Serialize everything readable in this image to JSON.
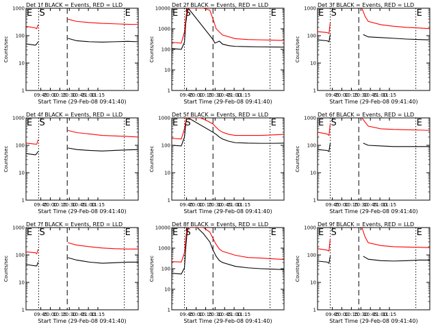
{
  "chart_data": [
    {
      "type": "line",
      "title": "Det 1f BLACK = Events, RED = LLD",
      "xlabel": "Start Time (29-Feb-08 09:41:40)",
      "ylabel": "Counts/sec",
      "yscale": "log",
      "ylim": [
        1,
        1000
      ],
      "yticks": [
        "1",
        "10",
        "100",
        "1000"
      ],
      "xticks": [
        "09:45",
        "10:00",
        "10:15",
        "10:30",
        "10:45",
        "11:00",
        "11:15"
      ],
      "xlim_minutes": [
        -20,
        157
      ],
      "markers": [
        {
          "label": "E",
          "t": -20
        },
        {
          "label": "S",
          "t": 0
        },
        {
          "label": "",
          "t": 45
        },
        {
          "label": "E",
          "t": 135
        }
      ],
      "series": [
        {
          "color": "#000000",
          "t": [
            -20,
            -5,
            -3,
            -1,
            0,
            45,
            46,
            60,
            80,
            100,
            120,
            140,
            157
          ],
          "y": [
            50,
            45,
            50,
            60,
            0,
            0,
            80,
            65,
            60,
            58,
            60,
            62,
            60
          ]
        },
        {
          "color": "#ff0000",
          "t": [
            -20,
            -5,
            -3,
            -1,
            0,
            45,
            46,
            60,
            80,
            100,
            120,
            140,
            157
          ],
          "y": [
            220,
            190,
            180,
            250,
            0,
            0,
            400,
            330,
            300,
            280,
            270,
            260,
            255
          ]
        }
      ]
    },
    {
      "type": "line",
      "title": "Det 2f BLACK = Events, RED = LLD",
      "xlabel": "Start Time (29-Feb-08 09:41:40)",
      "ylabel": "Counts/sec",
      "yscale": "log",
      "ylim": [
        1,
        10000
      ],
      "yticks": [
        "1",
        "10",
        "100",
        "1000",
        "10000"
      ],
      "xticks": [
        "09:45",
        "10:00",
        "10:15",
        "10:30",
        "10:45",
        "11:00",
        "11:15"
      ],
      "xlim_minutes": [
        -20,
        157
      ],
      "markers": [
        {
          "label": "E",
          "t": -20
        },
        {
          "label": "S",
          "t": 0
        },
        {
          "label": "",
          "t": 45
        },
        {
          "label": "E",
          "t": 135
        }
      ],
      "series": [
        {
          "color": "#000000",
          "t": [
            -20,
            -5,
            0,
            2,
            4,
            6,
            45,
            48,
            55,
            60,
            70,
            80,
            100,
            120,
            140,
            157
          ],
          "y": [
            110,
            100,
            220,
            1800,
            5000,
            10000,
            300,
            200,
            250,
            180,
            150,
            140,
            135,
            132,
            130,
            128
          ]
        },
        {
          "color": "#ff0000",
          "t": [
            -20,
            -5,
            0,
            2,
            4,
            6,
            10,
            20,
            30,
            40,
            45,
            50,
            55,
            60,
            80,
            100,
            120,
            140,
            157
          ],
          "y": [
            220,
            200,
            700,
            3000,
            8000,
            10000,
            10000,
            10000,
            10000,
            8000,
            3000,
            1000,
            700,
            500,
            330,
            300,
            290,
            280,
            270
          ]
        }
      ]
    },
    {
      "type": "line",
      "title": "Det 3f BLACK = Events, RED = LLD",
      "xlabel": "Start Time (29-Feb-08 09:41:40)",
      "ylabel": "Counts/sec",
      "yscale": "log",
      "ylim": [
        1,
        1000
      ],
      "yticks": [
        "1",
        "10",
        "100",
        "1000"
      ],
      "xticks": [
        "09:45",
        "10:00",
        "10:15",
        "10:30",
        "10:45",
        "11:00",
        "11:15"
      ],
      "xlim_minutes": [
        -20,
        157
      ],
      "markers": [
        {
          "label": "E",
          "t": -20
        },
        {
          "label": "S",
          "t": 0
        },
        {
          "label": "",
          "t": 45
        },
        {
          "label": "E",
          "t": 135
        }
      ],
      "series": [
        {
          "color": "#000000",
          "t": [
            -20,
            -5,
            -2,
            0,
            45,
            46,
            52,
            60,
            80,
            100,
            120,
            140,
            157
          ],
          "y": [
            70,
            65,
            60,
            110,
            0,
            0,
            110,
            90,
            85,
            80,
            75,
            72,
            70
          ]
        },
        {
          "color": "#ff0000",
          "t": [
            -20,
            -5,
            -2,
            0,
            45,
            46,
            50,
            55,
            60,
            80,
            100,
            120,
            140,
            157
          ],
          "y": [
            140,
            130,
            120,
            300,
            0,
            0,
            1000,
            500,
            330,
            250,
            220,
            200,
            190,
            180
          ]
        }
      ]
    },
    {
      "type": "line",
      "title": "Det 4f BLACK = Events, RED = LLD",
      "xlabel": "Start Time (29-Feb-08 09:41:40)",
      "ylabel": "Counts/sec",
      "yscale": "log",
      "ylim": [
        1,
        1000
      ],
      "yticks": [
        "1",
        "10",
        "100",
        "1000"
      ],
      "xticks": [
        "09:45",
        "10:00",
        "10:15",
        "10:30",
        "10:45",
        "11:00",
        "11:15"
      ],
      "xlim_minutes": [
        -20,
        157
      ],
      "markers": [
        {
          "label": "E",
          "t": -20
        },
        {
          "label": "S",
          "t": 0
        },
        {
          "label": "",
          "t": 45
        },
        {
          "label": "E",
          "t": 135
        }
      ],
      "series": [
        {
          "color": "#000000",
          "t": [
            -20,
            -5,
            -3,
            -1,
            0,
            45,
            46,
            60,
            80,
            100,
            120,
            140,
            157
          ],
          "y": [
            50,
            45,
            50,
            60,
            0,
            0,
            80,
            70,
            65,
            62,
            65,
            68,
            70
          ]
        },
        {
          "color": "#ff0000",
          "t": [
            -20,
            -5,
            -3,
            -1,
            0,
            45,
            46,
            60,
            80,
            100,
            120,
            140,
            157
          ],
          "y": [
            120,
            110,
            110,
            160,
            0,
            0,
            350,
            290,
            260,
            230,
            220,
            210,
            200
          ]
        }
      ]
    },
    {
      "type": "line",
      "title": "Det 5f BLACK = Events, RED = LLD",
      "xlabel": "Start Time (29-Feb-08 09:41:40)",
      "ylabel": "Counts/sec",
      "yscale": "log",
      "ylim": [
        1,
        1000
      ],
      "yticks": [
        "1",
        "10",
        "100",
        "1000"
      ],
      "xticks": [
        "09:45",
        "10:00",
        "10:15",
        "10:30",
        "10:45",
        "11:00",
        "11:15"
      ],
      "xlim_minutes": [
        -20,
        157
      ],
      "markers": [
        {
          "label": "E",
          "t": -20
        },
        {
          "label": "S",
          "t": 0
        },
        {
          "label": "",
          "t": 45
        },
        {
          "label": "E",
          "t": 135
        }
      ],
      "series": [
        {
          "color": "#000000",
          "t": [
            -20,
            -5,
            0,
            3,
            6,
            45,
            50,
            55,
            60,
            70,
            80,
            100,
            120,
            140,
            157
          ],
          "y": [
            100,
            95,
            200,
            1000,
            1000,
            300,
            250,
            200,
            170,
            140,
            125,
            120,
            118,
            118,
            120
          ]
        },
        {
          "color": "#ff0000",
          "t": [
            -20,
            -5,
            0,
            3,
            6,
            15,
            25,
            35,
            45,
            50,
            55,
            60,
            70,
            80,
            100,
            120,
            140,
            157
          ],
          "y": [
            180,
            170,
            400,
            1000,
            1000,
            1000,
            1000,
            800,
            600,
            450,
            350,
            300,
            250,
            230,
            230,
            230,
            240,
            250
          ]
        }
      ]
    },
    {
      "type": "line",
      "title": "Det 6f BLACK = Events, RED = LLD",
      "xlabel": "Start Time (29-Feb-08 09:41:40)",
      "ylabel": "Counts/sec",
      "yscale": "log",
      "ylim": [
        1,
        1000
      ],
      "yticks": [
        "1",
        "10",
        "100",
        "1000"
      ],
      "xticks": [
        "09:45",
        "10:00",
        "10:15",
        "10:30",
        "10:45",
        "11:00",
        "11:15"
      ],
      "xlim_minutes": [
        -20,
        157
      ],
      "markers": [
        {
          "label": "E",
          "t": -20
        },
        {
          "label": "S",
          "t": 0
        },
        {
          "label": "",
          "t": 45
        },
        {
          "label": "E",
          "t": 135
        }
      ],
      "series": [
        {
          "color": "#000000",
          "t": [
            -20,
            -5,
            -2,
            0,
            45,
            46,
            52,
            60,
            80,
            100,
            120,
            140,
            157
          ],
          "y": [
            70,
            65,
            60,
            120,
            0,
            0,
            120,
            100,
            95,
            90,
            90,
            90,
            90
          ]
        },
        {
          "color": "#ff0000",
          "t": [
            -20,
            -5,
            -2,
            0,
            45,
            46,
            50,
            55,
            60,
            80,
            100,
            120,
            140,
            157
          ],
          "y": [
            300,
            260,
            230,
            600,
            0,
            0,
            1000,
            700,
            500,
            400,
            380,
            370,
            360,
            350
          ]
        }
      ]
    },
    {
      "type": "line",
      "title": "Det 7f BLACK = Events, RED = LLD",
      "xlabel": "Start Time (29-Feb-08 09:41:40)",
      "ylabel": "Counts/sec",
      "yscale": "log",
      "ylim": [
        1,
        1000
      ],
      "yticks": [
        "1",
        "10",
        "100",
        "1000"
      ],
      "xticks": [
        "09:45",
        "10:00",
        "10:15",
        "10:30",
        "10:45",
        "11:00",
        "11:15"
      ],
      "xlim_minutes": [
        -20,
        157
      ],
      "markers": [
        {
          "label": "E",
          "t": -20
        },
        {
          "label": "S",
          "t": 0
        },
        {
          "label": "",
          "t": 45
        },
        {
          "label": "E",
          "t": 135
        }
      ],
      "series": [
        {
          "color": "#000000",
          "t": [
            -20,
            -5,
            -3,
            -1,
            0,
            45,
            46,
            60,
            80,
            100,
            120,
            140,
            157
          ],
          "y": [
            45,
            40,
            40,
            55,
            0,
            0,
            80,
            65,
            55,
            50,
            52,
            55,
            55
          ]
        },
        {
          "color": "#ff0000",
          "t": [
            -20,
            -5,
            -3,
            -1,
            0,
            45,
            46,
            60,
            80,
            100,
            120,
            140,
            157
          ],
          "y": [
            130,
            120,
            110,
            160,
            0,
            0,
            280,
            230,
            200,
            180,
            170,
            165,
            165
          ]
        }
      ]
    },
    {
      "type": "line",
      "title": "Det 8f BLACK = Events, RED = LLD",
      "xlabel": "Start Time (29-Feb-08 09:41:40)",
      "ylabel": "Counts/sec",
      "yscale": "log",
      "ylim": [
        1,
        10000
      ],
      "yticks": [
        "1",
        "10",
        "100",
        "1000",
        "10000"
      ],
      "xticks": [
        "09:45",
        "10:00",
        "10:15",
        "10:30",
        "10:45",
        "11:00",
        "11:15"
      ],
      "xlim_minutes": [
        -20,
        157
      ],
      "markers": [
        {
          "label": "E",
          "t": -20
        },
        {
          "label": "S",
          "t": 0
        },
        {
          "label": "",
          "t": 45
        },
        {
          "label": "E",
          "t": 135
        }
      ],
      "series": [
        {
          "color": "#000000",
          "t": [
            -20,
            -5,
            0,
            2,
            4,
            6,
            20,
            30,
            40,
            45,
            50,
            55,
            60,
            80,
            100,
            120,
            140,
            157
          ],
          "y": [
            60,
            55,
            110,
            1000,
            5000,
            10000,
            10000,
            5000,
            2000,
            800,
            400,
            250,
            200,
            130,
            110,
            100,
            95,
            90
          ]
        },
        {
          "color": "#ff0000",
          "t": [
            -20,
            -5,
            0,
            2,
            4,
            6,
            30,
            40,
            45,
            50,
            55,
            60,
            80,
            100,
            120,
            140,
            157
          ],
          "y": [
            220,
            210,
            600,
            3000,
            8000,
            10000,
            10000,
            6000,
            3000,
            1500,
            900,
            700,
            450,
            350,
            330,
            300,
            280
          ]
        }
      ]
    },
    {
      "type": "line",
      "title": "Det 9f BLACK = Events, RED = LLD",
      "xlabel": "Start Time (29-Feb-08 09:41:40)",
      "ylabel": "Counts/sec",
      "yscale": "log",
      "ylim": [
        1,
        1000
      ],
      "yticks": [
        "1",
        "10",
        "100",
        "1000"
      ],
      "xticks": [
        "09:45",
        "10:00",
        "10:15",
        "10:30",
        "10:45",
        "11:00",
        "11:15"
      ],
      "xlim_minutes": [
        -20,
        157
      ],
      "markers": [
        {
          "label": "E",
          "t": -20
        },
        {
          "label": "S",
          "t": 0
        },
        {
          "label": "",
          "t": 45
        },
        {
          "label": "E",
          "t": 135
        }
      ],
      "series": [
        {
          "color": "#000000",
          "t": [
            -20,
            -5,
            -2,
            0,
            45,
            46,
            52,
            60,
            80,
            100,
            120,
            140,
            157
          ],
          "y": [
            60,
            55,
            50,
            90,
            0,
            0,
            90,
            70,
            62,
            60,
            62,
            65,
            65
          ]
        },
        {
          "color": "#ff0000",
          "t": [
            -20,
            -5,
            -2,
            0,
            45,
            46,
            50,
            55,
            60,
            80,
            100,
            120,
            140,
            157
          ],
          "y": [
            170,
            150,
            140,
            400,
            0,
            0,
            1000,
            450,
            280,
            220,
            200,
            195,
            190,
            185
          ]
        }
      ]
    }
  ]
}
